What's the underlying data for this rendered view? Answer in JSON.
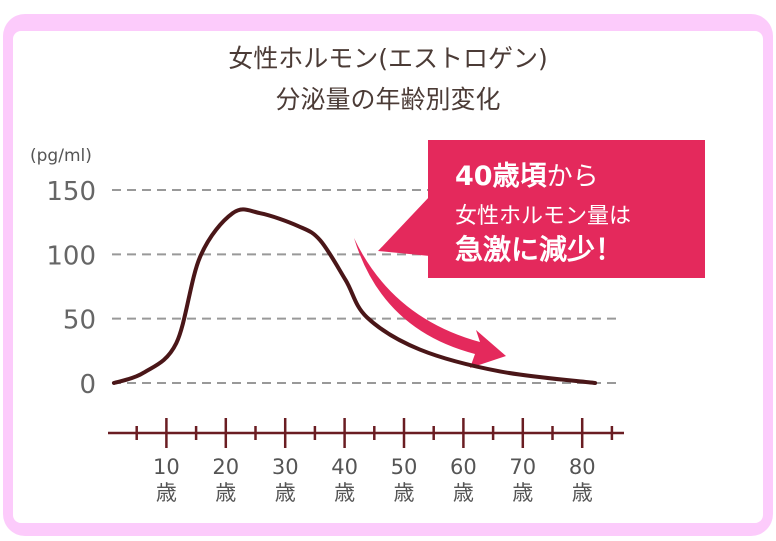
{
  "chart_data": {
    "type": "line",
    "title": "女性ホルモン(エストロゲン)",
    "subtitle": "分泌量の年齢別変化",
    "ylabel": "(pg/ml)",
    "xlabel": "",
    "ylim": [
      0,
      150
    ],
    "xlim": [
      0,
      86
    ],
    "yticks": [
      "0",
      "50",
      "100",
      "150"
    ],
    "xticks": [
      {
        "value": 10,
        "label": "10",
        "unit": "歳"
      },
      {
        "value": 20,
        "label": "20",
        "unit": "歳"
      },
      {
        "value": 30,
        "label": "30",
        "unit": "歳"
      },
      {
        "value": 40,
        "label": "40",
        "unit": "歳"
      },
      {
        "value": 50,
        "label": "50",
        "unit": "歳"
      },
      {
        "value": 60,
        "label": "60",
        "unit": "歳"
      },
      {
        "value": 70,
        "label": "70",
        "unit": "歳"
      },
      {
        "value": 80,
        "label": "80",
        "unit": "歳"
      }
    ],
    "grid": true,
    "series": [
      {
        "name": "estrogen",
        "color": "#4a1618",
        "x": [
          1,
          6,
          11.5,
          15.5,
          21,
          25.6,
          32,
          35.7,
          40,
          43.6,
          52.5,
          66,
          82
        ],
        "y": [
          0,
          8,
          31,
          98,
          132,
          132,
          122,
          111,
          80,
          51,
          26,
          9,
          0
        ]
      }
    ],
    "annotation": {
      "line1_strong": "40歳頃",
      "line1_rest": "から",
      "line2": "女性ホルモン量は",
      "line3": "急激に減少！",
      "color": "#e4295c"
    }
  }
}
